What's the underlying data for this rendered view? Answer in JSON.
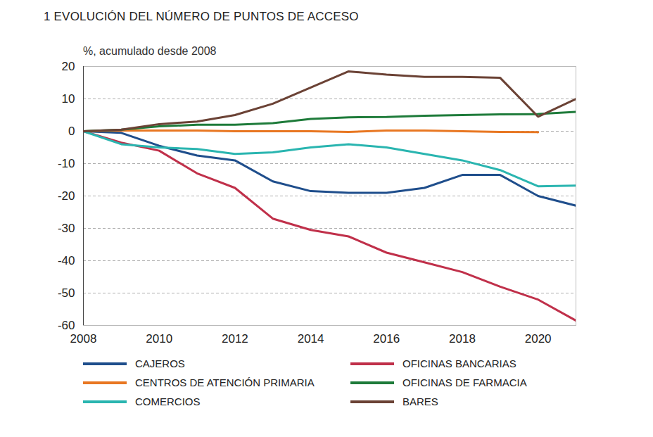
{
  "chart_data": {
    "type": "line",
    "title": "1 EVOLUCIÓN DEL NÚMERO DE PUNTOS DE ACCESO",
    "subtitle": "%, acumulado desde 2008",
    "x": [
      2008,
      2009,
      2010,
      2011,
      2012,
      2013,
      2014,
      2015,
      2016,
      2017,
      2018,
      2019,
      2020,
      2021
    ],
    "series": [
      {
        "name": "CAJEROS",
        "color": "#1f4e8c",
        "values": [
          0,
          -0.5,
          -4.5,
          -7.5,
          -9,
          -15.5,
          -18.5,
          -19,
          -19,
          -17.5,
          -13.5,
          -13.5,
          -20,
          -23
        ]
      },
      {
        "name": "OFICINAS BANCARIAS",
        "color": "#c0304a",
        "values": [
          0,
          -3.5,
          -6,
          -13,
          -17.5,
          -27,
          -30.5,
          -32.5,
          -37.5,
          -40.5,
          -43.5,
          -48,
          -52,
          -58.5
        ]
      },
      {
        "name": "CENTROS DE ATENCIÓN PRIMARIA",
        "color": "#e87722",
        "values": [
          0,
          0.2,
          0.2,
          0.2,
          0,
          0,
          0,
          -0.2,
          0.2,
          0.2,
          0,
          -0.2,
          -0.3,
          null
        ]
      },
      {
        "name": "OFICINAS DE FARMACIA",
        "color": "#1e7b3a",
        "values": [
          0,
          0.5,
          1.5,
          2,
          2,
          2.5,
          3.8,
          4.3,
          4.4,
          4.8,
          5,
          5.2,
          5.3,
          6
        ]
      },
      {
        "name": "COMERCIOS",
        "color": "#2ab5b0",
        "values": [
          0,
          -4,
          -5,
          -5.5,
          -7,
          -6.5,
          -5,
          -4,
          -5,
          -7,
          -9,
          -12,
          -17,
          -16.8
        ]
      },
      {
        "name": "BARES",
        "color": "#6b4235",
        "values": [
          0,
          0.5,
          2.2,
          3,
          5,
          8.5,
          13.5,
          18.5,
          17.5,
          16.8,
          16.8,
          16.5,
          4.5,
          10
        ]
      }
    ],
    "xlim": [
      2008,
      2021
    ],
    "xticks": [
      2008,
      2010,
      2012,
      2014,
      2016,
      2018,
      2020
    ],
    "ylim": [
      -60,
      20
    ],
    "yticks": [
      -60,
      -50,
      -40,
      -30,
      -20,
      -10,
      0,
      10,
      20
    ],
    "grid": true
  }
}
